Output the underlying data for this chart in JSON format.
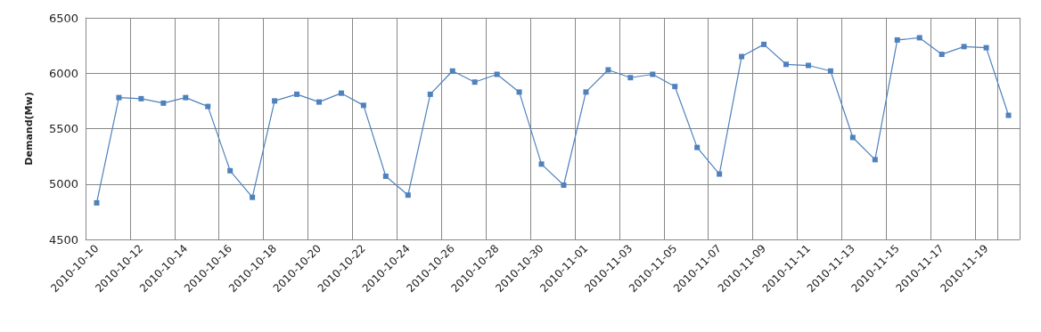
{
  "chart_data": {
    "type": "line",
    "ylabel": "Demand(Mw)",
    "categories": [
      "2010-10-10",
      null,
      "2010-10-12",
      null,
      "2010-10-14",
      null,
      "2010-10-16",
      null,
      "2010-10-18",
      null,
      "2010-10-20",
      null,
      "2010-10-22",
      null,
      "2010-10-24",
      null,
      "2010-10-26",
      null,
      "2010-10-28",
      null,
      "2010-10-30",
      null,
      "2010-11-01",
      null,
      "2010-11-03",
      null,
      "2010-11-05",
      null,
      "2010-11-07",
      null,
      "2010-11-09",
      null,
      "2010-11-11",
      null,
      "2010-11-13",
      null,
      "2010-11-15",
      null,
      "2010-11-17",
      null,
      "2010-11-19",
      null
    ],
    "series": [
      {
        "color": "#4f81bd",
        "values": [
          4830,
          5780,
          5770,
          5730,
          5780,
          5700,
          5120,
          4880,
          5750,
          5810,
          5740,
          5820,
          5710,
          5070,
          4900,
          5810,
          6020,
          5920,
          5990,
          5830,
          5180,
          4990,
          5830,
          6030,
          5960,
          5990,
          5880,
          5330,
          5090,
          6150,
          6260,
          6080,
          6070,
          6020,
          5420,
          5220,
          6300,
          6320,
          6170,
          6240,
          6230,
          5620
        ]
      }
    ],
    "ylim": [
      4500,
      6500
    ],
    "yticks": [
      4500,
      5000,
      5500,
      6000,
      6500
    ],
    "grid": true,
    "marker": "square",
    "line_style": "solid"
  }
}
